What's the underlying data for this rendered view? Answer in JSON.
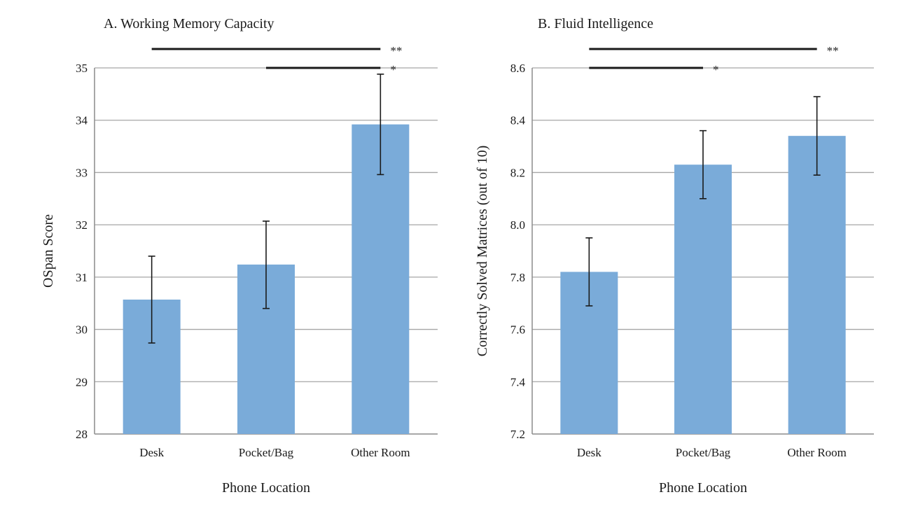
{
  "chart_data": [
    {
      "type": "bar",
      "title": "A. Working Memory Capacity",
      "xlabel": "Phone Location",
      "ylabel": "OSpan Score",
      "categories": [
        "Desk",
        "Pocket/Bag",
        "Other Room"
      ],
      "values": [
        30.57,
        31.24,
        33.92
      ],
      "error_low": [
        29.74,
        30.4,
        32.96
      ],
      "error_high": [
        31.4,
        32.07,
        34.88
      ],
      "ylim": [
        28,
        35
      ],
      "yticks": [
        28,
        29,
        30,
        31,
        32,
        33,
        34,
        35
      ],
      "ytick_labels": [
        "28",
        "29",
        "30",
        "31",
        "32",
        "33",
        "34",
        "35"
      ],
      "grid": true,
      "color": "#7aabd9",
      "significance": [
        {
          "from": "Desk",
          "to": "Other Room",
          "label": "**"
        },
        {
          "from": "Pocket/Bag",
          "to": "Other Room",
          "label": "*"
        }
      ]
    },
    {
      "type": "bar",
      "title": "B. Fluid Intelligence",
      "xlabel": "Phone Location",
      "ylabel": "Correctly Solved Matrices (out of 10)",
      "categories": [
        "Desk",
        "Pocket/Bag",
        "Other Room"
      ],
      "values": [
        7.82,
        8.23,
        8.34
      ],
      "error_low": [
        7.69,
        8.1,
        8.19
      ],
      "error_high": [
        7.95,
        8.36,
        8.49
      ],
      "ylim": [
        7.2,
        8.6
      ],
      "yticks": [
        7.2,
        7.4,
        7.6,
        7.8,
        8.0,
        8.2,
        8.4,
        8.6
      ],
      "ytick_labels": [
        "7.2",
        "7.4",
        "7.6",
        "7.8",
        "8.0",
        "8.2",
        "8.4",
        "8.6"
      ],
      "grid": true,
      "color": "#7aabd9",
      "significance": [
        {
          "from": "Desk",
          "to": "Other Room",
          "label": "**"
        },
        {
          "from": "Desk",
          "to": "Pocket/Bag",
          "label": "*"
        }
      ]
    }
  ]
}
